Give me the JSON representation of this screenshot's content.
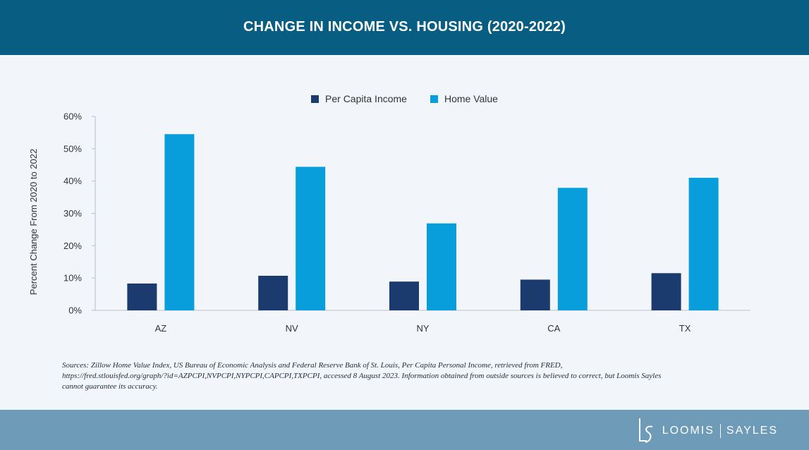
{
  "header": {
    "title": "CHANGE IN INCOME VS. HOUSING (2020-2022)"
  },
  "legend": {
    "items": [
      {
        "label": "Per Capita Income",
        "color": "#1b3a6e"
      },
      {
        "label": "Home Value",
        "color": "#089ddb"
      }
    ]
  },
  "chart_data": {
    "type": "bar",
    "title": "CHANGE IN INCOME VS. HOUSING (2020-2022)",
    "ylabel": "Percent Change From 2020 to 2022",
    "xlabel": "",
    "categories": [
      "AZ",
      "NV",
      "NY",
      "CA",
      "TX"
    ],
    "series": [
      {
        "name": "Per Capita Income",
        "color": "#1b3a6e",
        "values": [
          8.3,
          10.7,
          8.9,
          9.5,
          11.5
        ]
      },
      {
        "name": "Home Value",
        "color": "#089ddb",
        "values": [
          54.5,
          44.4,
          26.9,
          37.9,
          41.0
        ]
      }
    ],
    "ylim": [
      0,
      60
    ],
    "yticks": [
      "0%",
      "10%",
      "20%",
      "30%",
      "40%",
      "50%",
      "60%"
    ],
    "ytick_values": [
      0,
      10,
      20,
      30,
      40,
      50,
      60
    ],
    "grid": false,
    "legend_position": "top-center"
  },
  "source": {
    "line1": "Sources: Zillow Home Value Index, US Bureau of Economic Analysis and Federal Reserve Bank of St. Louis, Per Capita Personal Income, retrieved from FRED,",
    "line2": "https://fred.stlouisfed.org/graph/?id=AZPCPI,NVPCPI,NYPCPI,CAPCPI,TXPCPI, accessed 8 August 2023. Information obtained from outside sources is believed to correct, but Loomis Sayles",
    "line3": "cannot guarantee its accuracy."
  },
  "footer": {
    "logo_left": "LOOMIS",
    "logo_right": "SAYLES"
  }
}
